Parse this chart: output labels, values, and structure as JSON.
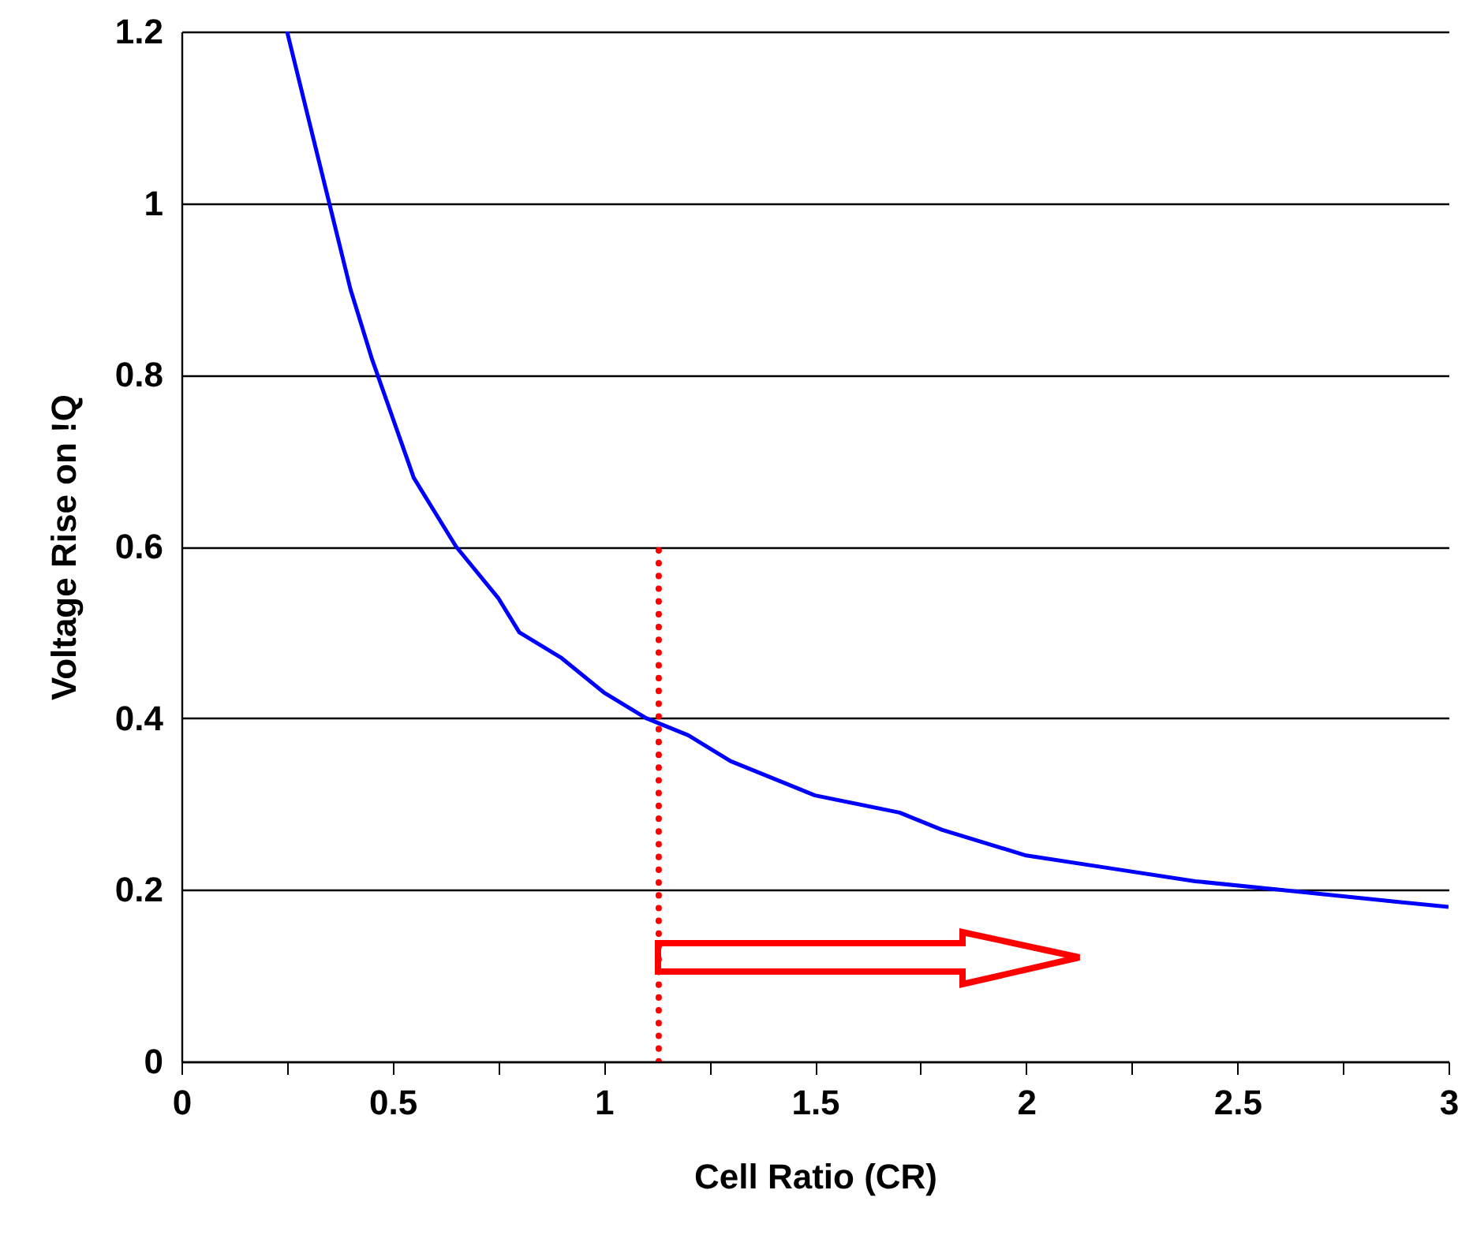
{
  "chart_data": {
    "type": "line",
    "xlabel": "Cell Ratio (CR)",
    "ylabel": "Voltage Rise on !Q",
    "xlim": [
      0,
      3
    ],
    "ylim": [
      0,
      1.2
    ],
    "xticks": [
      0,
      {
        "value": 0.25,
        "label": null
      },
      0.5,
      {
        "value": 0.75,
        "label": null
      },
      1,
      {
        "value": 1.25,
        "label": null
      },
      1.5,
      {
        "value": 1.75,
        "label": null
      },
      2,
      {
        "value": 2.25,
        "label": null
      },
      2.5,
      {
        "value": 2.75,
        "label": null
      },
      3
    ],
    "yticks": [
      0,
      0.2,
      0.4,
      0.6,
      0.8,
      1,
      1.2
    ],
    "grid": "y",
    "series": [
      {
        "color": "#0000ff",
        "line_style": "solid",
        "x": [
          0.25,
          0.3,
          0.35,
          0.4,
          0.45,
          0.5,
          0.55,
          0.6,
          0.65,
          0.75,
          0.8,
          0.9,
          1.0,
          1.1,
          1.2,
          1.3,
          1.4,
          1.5,
          1.7,
          1.8,
          2.0,
          2.2,
          2.4,
          2.6,
          2.8,
          3.0
        ],
        "values": [
          1.2,
          1.1,
          1.0,
          0.9,
          0.82,
          0.75,
          0.68,
          0.64,
          0.6,
          0.54,
          0.5,
          0.47,
          0.43,
          0.4,
          0.38,
          0.35,
          0.33,
          0.31,
          0.29,
          0.27,
          0.24,
          0.225,
          0.21,
          0.2,
          0.19,
          0.18
        ]
      },
      {
        "color": "#ff0000",
        "line_style": "dotted",
        "x": [
          1.13,
          1.13
        ],
        "values": [
          0,
          0.6
        ]
      }
    ]
  }
}
